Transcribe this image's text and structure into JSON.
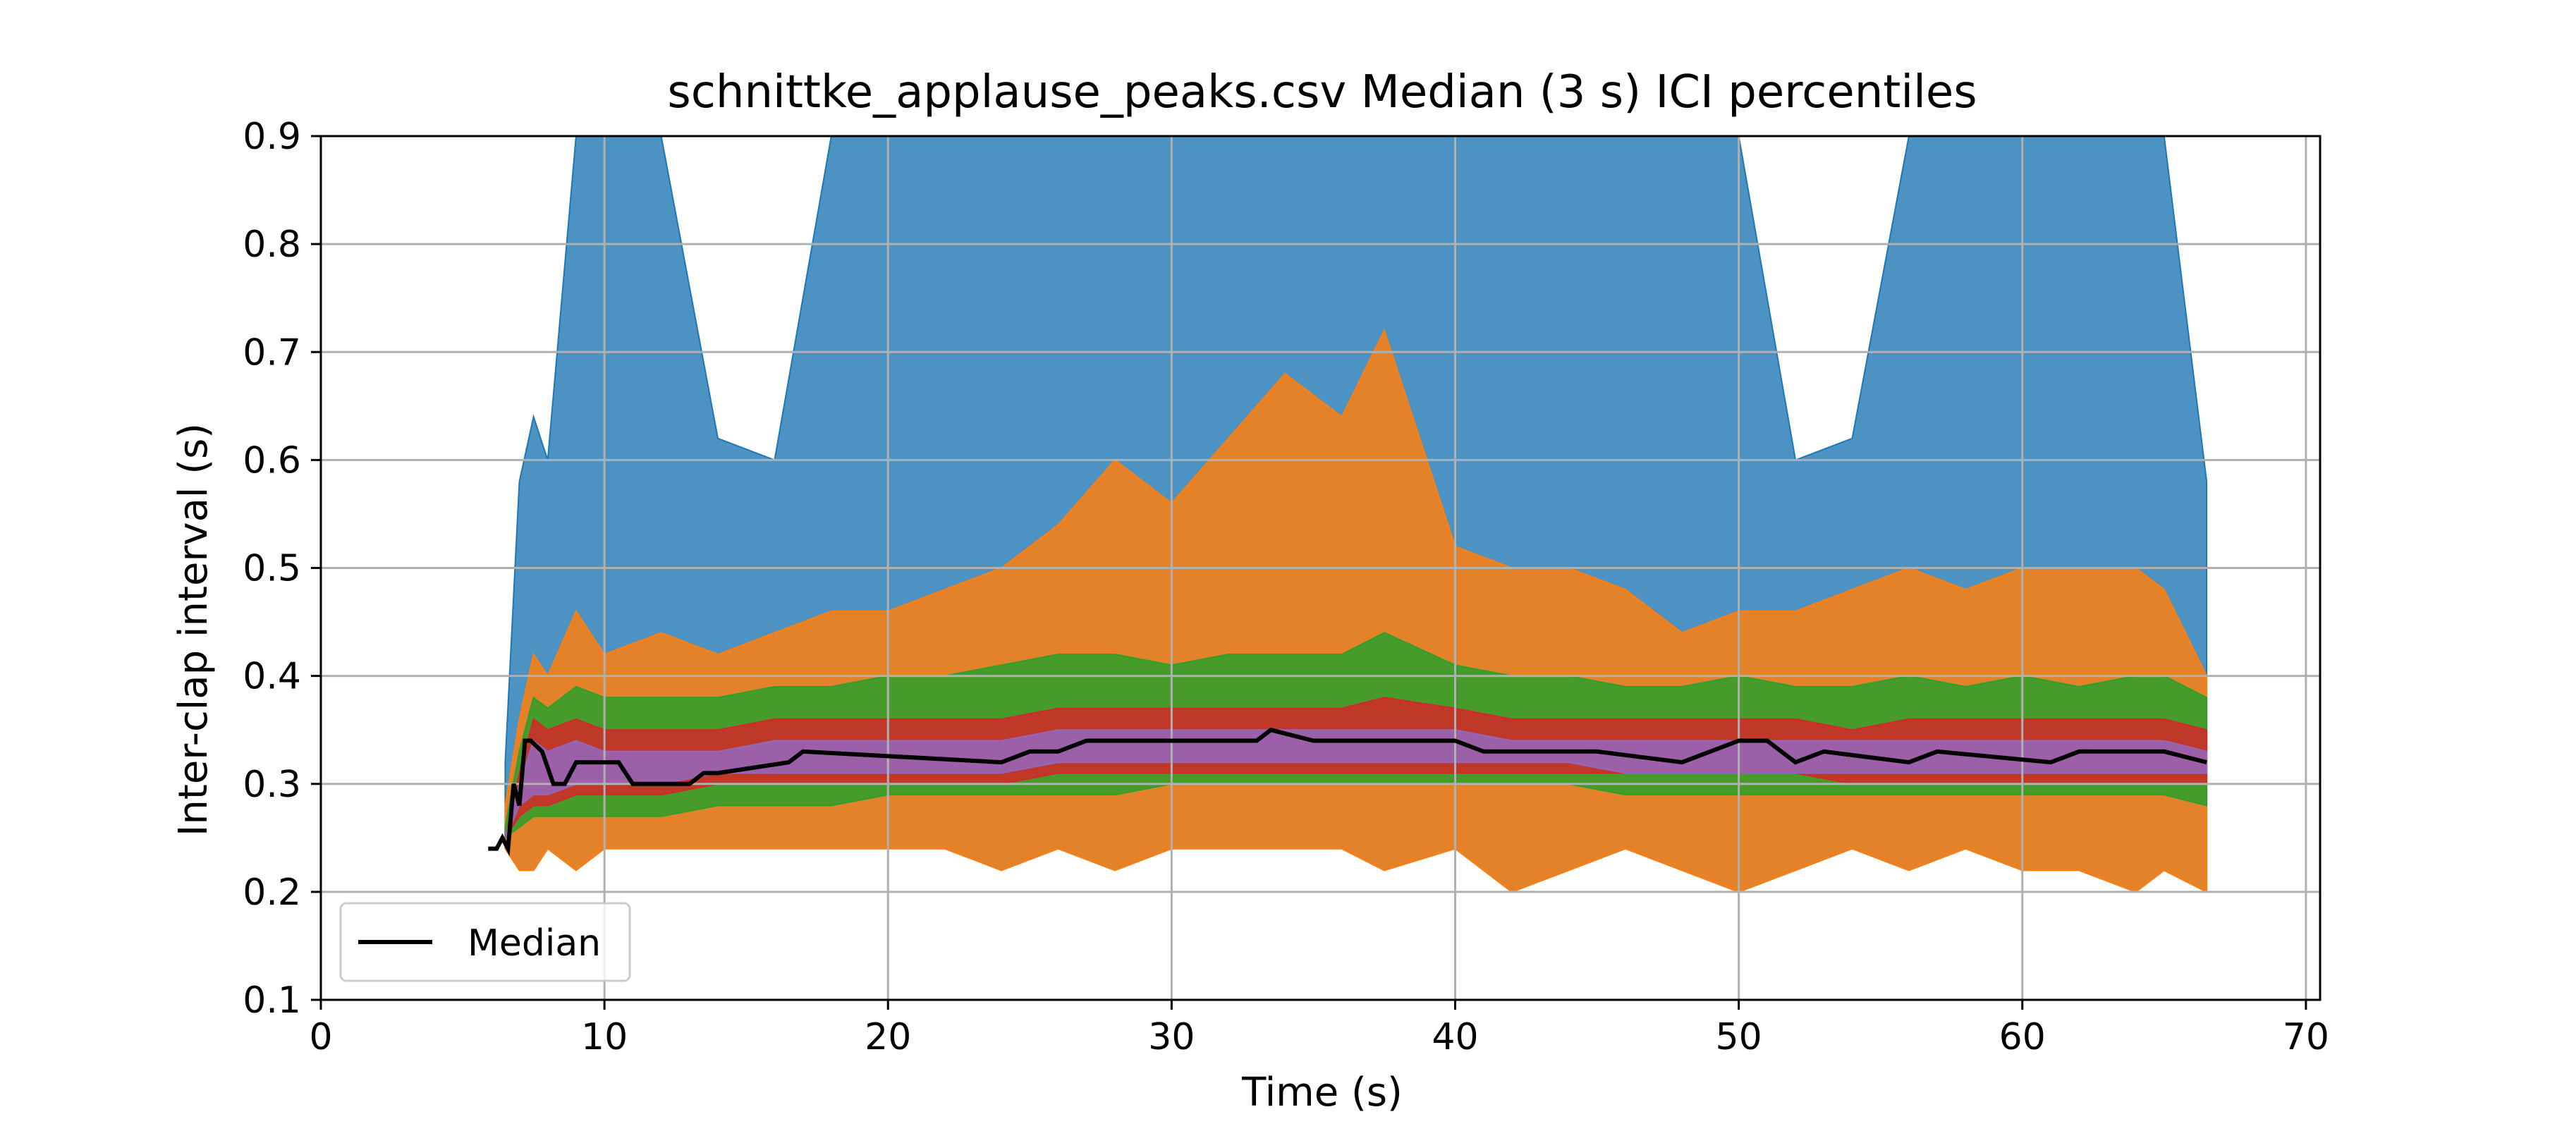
{
  "chart_data": {
    "type": "area",
    "title": "schnittke_applause_peaks.csv Median (3 s) ICI percentiles",
    "xlabel": "Time (s)",
    "ylabel": "Inter-clap interval (s)",
    "xlim": [
      0,
      70.5
    ],
    "ylim": [
      0.1,
      0.9
    ],
    "xticks": [
      0,
      10,
      20,
      30,
      40,
      50,
      60,
      70
    ],
    "yticks": [
      0.1,
      0.2,
      0.3,
      0.4,
      0.5,
      0.6,
      0.7,
      0.8,
      0.9
    ],
    "grid": true,
    "legend": {
      "location": "lower-left",
      "entries": [
        "Median"
      ]
    },
    "colors": {
      "band_outer": "#1f77b4",
      "band_second": "#ff7f0e",
      "band_third": "#2ca02c",
      "band_fourth": "#d62728",
      "band_inner": "#9467bd",
      "median": "#000000",
      "grid": "#b0b0b0"
    },
    "x": [
      6.5,
      7,
      7.5,
      8,
      9,
      10,
      12,
      14,
      16,
      18,
      20,
      22,
      24,
      26,
      28,
      30,
      32,
      34,
      36,
      37.5,
      40,
      42,
      44,
      46,
      48,
      50,
      52,
      54,
      56,
      58,
      60,
      62,
      64,
      65,
      66.5
    ],
    "series": [
      {
        "role": "outer",
        "upper": [
          0.32,
          0.58,
          0.64,
          0.6,
          0.9,
          0.9,
          0.9,
          0.62,
          0.6,
          0.9,
          0.9,
          0.9,
          0.9,
          0.9,
          0.9,
          0.9,
          0.9,
          0.9,
          0.9,
          0.9,
          0.9,
          0.9,
          0.9,
          0.9,
          0.9,
          0.9,
          0.6,
          0.62,
          0.9,
          0.9,
          0.9,
          0.9,
          0.9,
          0.9,
          0.58
        ],
        "lower": [
          0.24,
          0.22,
          0.22,
          0.24,
          0.22,
          0.24,
          0.24,
          0.24,
          0.24,
          0.24,
          0.24,
          0.24,
          0.22,
          0.24,
          0.22,
          0.24,
          0.24,
          0.24,
          0.24,
          0.22,
          0.24,
          0.2,
          0.22,
          0.24,
          0.22,
          0.2,
          0.22,
          0.24,
          0.22,
          0.24,
          0.22,
          0.22,
          0.2,
          0.22,
          0.2
        ]
      },
      {
        "role": "second",
        "upper": [
          0.28,
          0.36,
          0.42,
          0.4,
          0.46,
          0.42,
          0.44,
          0.42,
          0.44,
          0.46,
          0.46,
          0.48,
          0.5,
          0.54,
          0.6,
          0.56,
          0.62,
          0.68,
          0.64,
          0.72,
          0.52,
          0.5,
          0.5,
          0.48,
          0.44,
          0.46,
          0.46,
          0.48,
          0.5,
          0.48,
          0.5,
          0.5,
          0.5,
          0.48,
          0.4
        ]
      },
      {
        "role": "third",
        "upper": [
          0.26,
          0.33,
          0.38,
          0.37,
          0.39,
          0.38,
          0.38,
          0.38,
          0.39,
          0.39,
          0.4,
          0.4,
          0.41,
          0.42,
          0.42,
          0.41,
          0.42,
          0.42,
          0.42,
          0.44,
          0.41,
          0.4,
          0.4,
          0.39,
          0.39,
          0.4,
          0.39,
          0.39,
          0.4,
          0.39,
          0.4,
          0.39,
          0.4,
          0.4,
          0.38
        ],
        "lower": [
          0.25,
          0.26,
          0.27,
          0.27,
          0.27,
          0.27,
          0.27,
          0.28,
          0.28,
          0.28,
          0.29,
          0.29,
          0.29,
          0.29,
          0.29,
          0.3,
          0.3,
          0.3,
          0.3,
          0.3,
          0.3,
          0.3,
          0.3,
          0.29,
          0.29,
          0.29,
          0.29,
          0.29,
          0.29,
          0.29,
          0.29,
          0.29,
          0.29,
          0.29,
          0.28
        ]
      },
      {
        "role": "fourth",
        "upper": [
          0.25,
          0.31,
          0.36,
          0.35,
          0.36,
          0.35,
          0.35,
          0.35,
          0.36,
          0.36,
          0.36,
          0.36,
          0.36,
          0.37,
          0.37,
          0.37,
          0.37,
          0.37,
          0.37,
          0.38,
          0.37,
          0.36,
          0.36,
          0.36,
          0.36,
          0.36,
          0.36,
          0.35,
          0.36,
          0.36,
          0.36,
          0.36,
          0.36,
          0.36,
          0.35
        ],
        "lower": [
          0.25,
          0.27,
          0.28,
          0.28,
          0.29,
          0.29,
          0.29,
          0.3,
          0.3,
          0.3,
          0.3,
          0.3,
          0.3,
          0.31,
          0.31,
          0.31,
          0.31,
          0.31,
          0.31,
          0.31,
          0.31,
          0.31,
          0.31,
          0.31,
          0.31,
          0.31,
          0.31,
          0.3,
          0.3,
          0.3,
          0.3,
          0.3,
          0.3,
          0.3,
          0.3
        ]
      },
      {
        "role": "inner",
        "upper": [
          0.25,
          0.3,
          0.34,
          0.33,
          0.34,
          0.33,
          0.33,
          0.33,
          0.34,
          0.34,
          0.34,
          0.34,
          0.34,
          0.35,
          0.35,
          0.35,
          0.35,
          0.35,
          0.35,
          0.35,
          0.35,
          0.34,
          0.34,
          0.34,
          0.34,
          0.34,
          0.34,
          0.34,
          0.34,
          0.34,
          0.34,
          0.34,
          0.34,
          0.34,
          0.33
        ],
        "lower": [
          0.25,
          0.28,
          0.29,
          0.29,
          0.3,
          0.3,
          0.3,
          0.31,
          0.31,
          0.31,
          0.31,
          0.31,
          0.31,
          0.32,
          0.32,
          0.32,
          0.32,
          0.32,
          0.32,
          0.32,
          0.32,
          0.32,
          0.32,
          0.31,
          0.31,
          0.31,
          0.31,
          0.31,
          0.31,
          0.31,
          0.31,
          0.31,
          0.31,
          0.31,
          0.31
        ]
      }
    ],
    "median": {
      "name": "Median",
      "x": [
        5.9,
        6.2,
        6.4,
        6.6,
        6.8,
        7.0,
        7.2,
        7.4,
        7.8,
        8.2,
        8.6,
        9.0,
        9.5,
        10.5,
        11.0,
        13.0,
        13.5,
        14.0,
        16.5,
        17.0,
        24.0,
        25.0,
        26.0,
        27.0,
        28.0,
        33.0,
        33.5,
        35.0,
        36.0,
        40.0,
        41.0,
        42.0,
        43.0,
        45.0,
        48.0,
        49.0,
        50.0,
        51.0,
        52.0,
        53.0,
        56.0,
        57.0,
        61.0,
        62.0,
        63.5,
        65.0,
        66.5
      ],
      "y": [
        0.24,
        0.24,
        0.25,
        0.24,
        0.3,
        0.28,
        0.34,
        0.34,
        0.33,
        0.3,
        0.3,
        0.32,
        0.32,
        0.32,
        0.3,
        0.3,
        0.31,
        0.31,
        0.32,
        0.33,
        0.32,
        0.33,
        0.33,
        0.34,
        0.34,
        0.34,
        0.35,
        0.34,
        0.34,
        0.34,
        0.33,
        0.33,
        0.33,
        0.33,
        0.32,
        0.33,
        0.34,
        0.34,
        0.32,
        0.33,
        0.32,
        0.33,
        0.32,
        0.33,
        0.33,
        0.33,
        0.32
      ]
    }
  }
}
